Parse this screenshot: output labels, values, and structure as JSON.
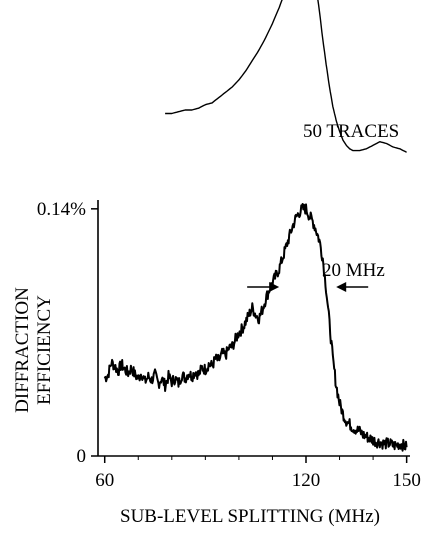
{
  "chart_data": {
    "type": "line",
    "xlabel": "SUB-LEVEL SPLITTING (MHz)",
    "ylabel": "DIFFRACTION EFFICIENCY",
    "xlim": [
      58,
      151
    ],
    "ylim": [
      0,
      0.145
    ],
    "x_ticks": [
      60,
      120,
      150
    ],
    "x_tick_labels": [
      "60",
      "120",
      "150"
    ],
    "y_ticks": [
      0,
      0.14
    ],
    "y_tick_labels": [
      "0",
      "0.14%"
    ],
    "grid": false,
    "series": [
      {
        "name": "",
        "style": "noisy",
        "x": [
          60,
          61,
          62,
          63,
          64,
          65,
          66,
          67,
          68,
          69,
          70,
          71,
          72,
          73,
          74,
          75,
          76,
          77,
          78,
          79,
          80,
          81,
          82,
          83,
          84,
          85,
          86,
          87,
          88,
          89,
          90,
          91,
          92,
          93,
          94,
          95,
          96,
          97,
          98,
          99,
          100,
          101,
          102,
          103,
          104,
          105,
          106,
          107,
          108,
          109,
          110,
          111,
          112,
          113,
          114,
          115,
          116,
          117,
          118,
          119,
          120,
          121,
          122,
          123,
          124,
          125,
          126,
          127,
          128,
          129,
          130,
          131,
          132,
          133,
          134,
          135,
          136,
          137,
          138,
          139,
          140,
          141,
          142,
          143,
          144,
          145,
          146,
          147,
          148,
          149,
          150
        ],
        "values": [
          0.044,
          0.046,
          0.053,
          0.051,
          0.048,
          0.052,
          0.049,
          0.047,
          0.05,
          0.046,
          0.044,
          0.047,
          0.042,
          0.045,
          0.043,
          0.046,
          0.041,
          0.044,
          0.04,
          0.045,
          0.042,
          0.044,
          0.041,
          0.046,
          0.044,
          0.047,
          0.045,
          0.048,
          0.046,
          0.05,
          0.049,
          0.052,
          0.051,
          0.055,
          0.054,
          0.058,
          0.057,
          0.061,
          0.062,
          0.066,
          0.07,
          0.072,
          0.076,
          0.08,
          0.084,
          0.08,
          0.078,
          0.083,
          0.089,
          0.094,
          0.098,
          0.102,
          0.106,
          0.112,
          0.118,
          0.124,
          0.13,
          0.135,
          0.138,
          0.14,
          0.14,
          0.136,
          0.133,
          0.128,
          0.122,
          0.112,
          0.095,
          0.075,
          0.055,
          0.04,
          0.03,
          0.024,
          0.02,
          0.018,
          0.016,
          0.015,
          0.014,
          0.012,
          0.011,
          0.01,
          0.009,
          0.008,
          0.008,
          0.007,
          0.007,
          0.007,
          0.006,
          0.006,
          0.007,
          0.006,
          0.005
        ]
      },
      {
        "name": "50 TRACES",
        "style": "smooth",
        "x": [
          78,
          80,
          82,
          84,
          86,
          88,
          90,
          92,
          94,
          96,
          98,
          100,
          102,
          104,
          106,
          108,
          110,
          112,
          114,
          116,
          117,
          118,
          119,
          120,
          121,
          122,
          123,
          124,
          125,
          126,
          127,
          128,
          129,
          130,
          131,
          132,
          133,
          134,
          136,
          138,
          140,
          142,
          144,
          146,
          148,
          150
        ],
        "values": [
          0.194,
          0.194,
          0.195,
          0.196,
          0.196,
          0.197,
          0.199,
          0.2,
          0.203,
          0.206,
          0.209,
          0.213,
          0.218,
          0.224,
          0.23,
          0.237,
          0.245,
          0.254,
          0.264,
          0.275,
          0.281,
          0.287,
          0.291,
          0.292,
          0.288,
          0.279,
          0.266,
          0.252,
          0.236,
          0.222,
          0.209,
          0.198,
          0.19,
          0.184,
          0.179,
          0.176,
          0.174,
          0.173,
          0.173,
          0.174,
          0.176,
          0.178,
          0.177,
          0.175,
          0.174,
          0.172
        ]
      }
    ],
    "annotations": {
      "trace_label": "50 TRACES",
      "width_label": "20 MHz",
      "width_markers": [
        112,
        129
      ]
    }
  }
}
